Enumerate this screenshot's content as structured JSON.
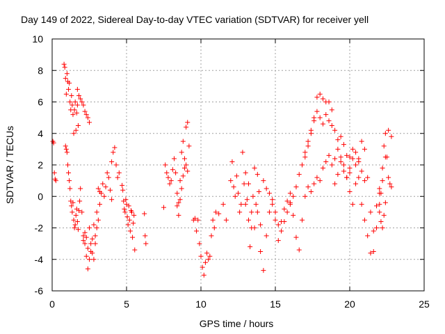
{
  "chart_data": {
    "type": "scatter",
    "title": "Day 149 of 2022, Sidereal Day-to-day VTEC variation (SDTVAR) for receiver yell",
    "xlabel": "GPS time / hours",
    "ylabel": "SDTVAR / TECUs",
    "xlim": [
      0,
      25
    ],
    "ylim": [
      -6,
      10
    ],
    "xticks": [
      0,
      5,
      10,
      15,
      20,
      25
    ],
    "yticks": [
      -6,
      -4,
      -2,
      0,
      2,
      4,
      6,
      8,
      10
    ],
    "grid": true,
    "marker": "+",
    "series": [
      {
        "name": "SDTVAR",
        "color": "#ff0000",
        "segments": [
          {
            "x": [
              0.05,
              0.1,
              0.15,
              0.2,
              0.25
            ],
            "y": [
              3.5,
              3.4,
              1.5,
              1.1,
              1.0
            ]
          },
          {
            "x": [
              0.8,
              0.85,
              0.9,
              0.95,
              1.0,
              1.05,
              1.1,
              1.15,
              1.2,
              1.25,
              1.3,
              1.35,
              1.4,
              1.45,
              1.5,
              1.55,
              1.6,
              1.65,
              1.7,
              1.75
            ],
            "y": [
              8.4,
              8.2,
              7.5,
              6.5,
              7.8,
              7.3,
              6.8,
              7.2,
              6.0,
              5.5,
              6.4,
              5.8,
              5.2,
              4.0,
              5.5,
              6.0,
              4.2,
              5.3,
              5.8,
              4.5
            ]
          },
          {
            "x": [
              0.9,
              0.95,
              1.0,
              1.05,
              1.1,
              1.15,
              1.2,
              1.25,
              1.3,
              1.35,
              1.4,
              1.45,
              1.5,
              1.55,
              1.6,
              1.65,
              1.7,
              1.75,
              1.8,
              1.85
            ],
            "y": [
              3.2,
              3.0,
              2.8,
              2.0,
              1.5,
              1.0,
              0.5,
              -0.3,
              -0.6,
              -1.0,
              -0.4,
              -1.5,
              -2.0,
              -1.8,
              -1.2,
              -0.8,
              -1.6,
              -2.1,
              -0.9,
              -0.3
            ]
          },
          {
            "x": [
              1.7,
              1.8,
              1.9,
              2.0,
              2.1,
              2.2,
              2.3,
              2.4,
              2.5
            ],
            "y": [
              6.8,
              6.4,
              6.2,
              6.0,
              5.8,
              5.4,
              5.2,
              5.0,
              4.7
            ]
          },
          {
            "x": [
              1.9,
              2.0,
              2.1,
              2.2,
              2.3,
              2.4,
              2.5,
              2.6,
              2.7,
              2.8,
              2.9,
              3.0,
              3.1,
              3.2
            ],
            "y": [
              0.5,
              -1.0,
              -2.5,
              -3.0,
              -3.8,
              -4.6,
              -4.0,
              -3.5,
              -3.6,
              -4.0,
              -3.0,
              -2.0,
              -1.5,
              -0.5
            ]
          },
          {
            "x": [
              2.1,
              2.2,
              2.3,
              2.4,
              2.5,
              2.6,
              2.7,
              2.8,
              2.9,
              3.0,
              3.1,
              3.2,
              3.3,
              3.4,
              3.5,
              3.6,
              3.7,
              3.8,
              3.9,
              4.0
            ],
            "y": [
              -2.8,
              -2.3,
              -2.6,
              -3.3,
              -2.0,
              -3.0,
              -2.7,
              -1.8,
              -2.5,
              -1.0,
              0.5,
              0.3,
              0.2,
              0.8,
              0.0,
              0.6,
              1.5,
              1.2,
              0.4,
              -0.2
            ]
          },
          {
            "x": [
              4.0,
              4.1,
              4.2,
              4.3,
              4.4,
              4.5
            ],
            "y": [
              2.2,
              2.8,
              3.1,
              2.0,
              1.2,
              1.5
            ]
          },
          {
            "x": [
              4.7,
              4.75,
              4.8,
              4.85,
              4.9,
              4.95,
              5.0,
              5.05,
              5.1,
              5.15,
              5.2,
              5.25,
              5.3,
              5.35,
              5.4,
              5.45,
              5.5,
              5.55
            ],
            "y": [
              0.7,
              0.4,
              -0.3,
              -0.8,
              -1.0,
              -0.2,
              -0.5,
              -1.3,
              -1.8,
              -0.6,
              -1.5,
              -2.2,
              -0.9,
              -1.0,
              -2.6,
              -1.7,
              -1.2,
              -3.4
            ]
          },
          {
            "x": [
              6.2,
              6.25,
              6.3
            ],
            "y": [
              -1.1,
              -2.5,
              -3.0
            ]
          },
          {
            "x": [
              7.5,
              7.6,
              7.7,
              7.8,
              7.9,
              8.0,
              8.1
            ],
            "y": [
              -0.7,
              2.0,
              1.5,
              1.2,
              0.8,
              1.0,
              1.7
            ]
          },
          {
            "x": [
              8.2,
              8.3,
              8.4,
              8.5,
              8.6,
              8.7,
              8.8,
              8.9,
              9.0,
              9.1,
              9.2
            ],
            "y": [
              2.4,
              1.5,
              0.2,
              -0.4,
              1.0,
              2.8,
              3.5,
              2.4,
              4.4,
              4.7,
              3.2
            ]
          },
          {
            "x": [
              8.4,
              8.5,
              8.6,
              8.7,
              8.8,
              8.9,
              9.0,
              9.1
            ],
            "y": [
              -0.6,
              -1.2,
              -0.2,
              0.5,
              1.3,
              1.8,
              2.0,
              1.6
            ]
          },
          {
            "x": [
              9.5,
              9.6,
              9.7,
              9.8,
              9.9,
              10.0,
              10.1,
              10.2,
              10.3,
              10.4,
              10.5,
              10.6,
              10.7,
              10.8,
              10.9,
              11.0
            ],
            "y": [
              -1.5,
              -1.4,
              -2.2,
              -1.5,
              -3.0,
              -3.8,
              -4.5,
              -5.0,
              -4.2,
              -3.6,
              -4.0,
              -3.8,
              -2.5,
              -1.5,
              -2.0,
              -1.0
            ]
          },
          {
            "x": [
              11.2,
              11.5,
              11.7
            ],
            "y": [
              -1.1,
              -0.5,
              -1.5
            ]
          },
          {
            "x": [
              12.0,
              12.1,
              12.2,
              12.3,
              12.4,
              12.5,
              12.6,
              12.7,
              12.8,
              12.9,
              13.0,
              13.1,
              13.2,
              13.3,
              13.4,
              13.5,
              13.6,
              13.7,
              13.8,
              13.9,
              14.0
            ],
            "y": [
              1.0,
              2.2,
              0.6,
              0.0,
              1.3,
              0.2,
              -1.0,
              -0.5,
              2.8,
              0.8,
              1.5,
              -0.2,
              -1.5,
              -3.2,
              -1.0,
              0.0,
              -2.0,
              -0.5,
              1.4,
              0.3,
              -1.8
            ]
          },
          {
            "x": [
              13.0,
              13.2,
              13.4,
              13.6,
              13.8,
              14.0,
              14.2,
              14.4,
              14.6,
              14.8,
              15.0,
              15.2,
              15.4,
              15.6,
              15.8,
              16.0
            ],
            "y": [
              -0.5,
              0.8,
              -2.0,
              1.8,
              -1.0,
              -3.5,
              -4.7,
              -2.5,
              -1.0,
              -0.2,
              -1.5,
              -2.8,
              -1.6,
              -0.8,
              -0.3,
              0.2
            ]
          },
          {
            "x": [
              14.2,
              14.4,
              14.6,
              14.8,
              15.0,
              15.2,
              15.4,
              15.6,
              15.8,
              16.0,
              16.2,
              16.4,
              16.6,
              16.8,
              17.0,
              17.2,
              17.4,
              17.6,
              17.8,
              18.0,
              18.2,
              18.4,
              18.6,
              18.8
            ],
            "y": [
              1.0,
              0.5,
              0.2,
              -0.5,
              -1.0,
              -1.8,
              -2.2,
              -1.6,
              -1.0,
              -0.4,
              0.0,
              0.6,
              1.4,
              2.0,
              2.8,
              3.5,
              4.2,
              5.0,
              6.3,
              6.5,
              6.2,
              6.0,
              6.0,
              5.5
            ]
          },
          {
            "x": [
              16.0,
              16.2,
              16.4,
              16.6,
              16.8,
              17.0,
              17.2,
              17.4,
              17.6,
              17.8,
              18.0,
              18.2,
              18.4,
              18.6,
              18.8,
              19.0,
              19.2,
              19.4,
              19.6,
              19.8,
              20.0
            ],
            "y": [
              -0.5,
              -1.2,
              -2.6,
              -3.4,
              -1.5,
              0.0,
              0.6,
              0.3,
              0.8,
              1.2,
              1.0,
              1.8,
              2.2,
              2.6,
              2.0,
              2.4,
              3.0,
              3.8,
              3.3,
              2.6,
              1.5
            ]
          },
          {
            "x": [
              17.0,
              17.2,
              17.4,
              17.6,
              17.8,
              18.0,
              18.2,
              18.4,
              18.6,
              18.8,
              19.0,
              19.2,
              19.4,
              19.6,
              19.8,
              20.0,
              20.2,
              20.4,
              20.6,
              20.8,
              21.0
            ],
            "y": [
              2.5,
              3.2,
              4.0,
              4.8,
              5.4,
              5.0,
              4.6,
              5.2,
              4.8,
              4.5,
              4.2,
              3.6,
              2.5,
              1.6,
              1.2,
              1.8,
              2.4,
              2.8,
              2.2,
              1.6,
              1.0
            ]
          },
          {
            "x": [
              19.0,
              19.2,
              19.4,
              19.6,
              19.8,
              20.0,
              20.2,
              20.4,
              20.6,
              20.8,
              21.0,
              21.2,
              21.4,
              21.6,
              21.8,
              22.0
            ],
            "y": [
              0.8,
              1.4,
              2.2,
              2.0,
              1.2,
              0.3,
              -0.5,
              0.8,
              2.4,
              3.5,
              3.0,
              1.2,
              -1.0,
              -3.5,
              -2.0,
              0.5
            ]
          },
          {
            "x": [
              20.0,
              20.2,
              20.4,
              20.6,
              20.8,
              21.0,
              21.2,
              21.4,
              21.6,
              21.8,
              22.0,
              22.2,
              22.4,
              22.6,
              22.8
            ],
            "y": [
              2.5,
              3.0,
              2.0,
              1.2,
              -0.5,
              -1.5,
              -2.5,
              -3.6,
              -2.2,
              -0.6,
              0.2,
              1.0,
              2.5,
              4.2,
              3.8
            ]
          },
          {
            "x": [
              22.0,
              22.1,
              22.2,
              22.3,
              22.4,
              22.5,
              22.6,
              22.7,
              22.8
            ],
            "y": [
              -0.5,
              0.2,
              1.8,
              3.2,
              4.0,
              2.5,
              1.2,
              0.8,
              0.6
            ]
          },
          {
            "x": [
              22.0,
              22.1,
              22.2,
              22.3,
              22.4
            ],
            "y": [
              -1.0,
              -1.6,
              -2.0,
              -1.2,
              -0.4
            ]
          }
        ]
      }
    ]
  }
}
